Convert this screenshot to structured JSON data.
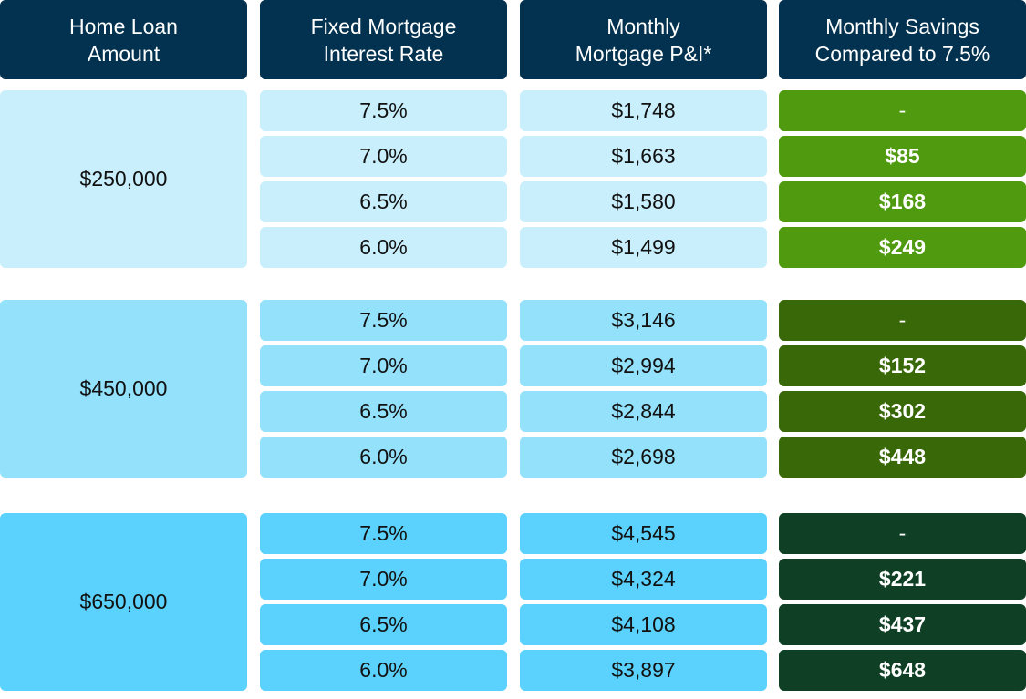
{
  "headers": [
    [
      "Home Loan",
      "Amount"
    ],
    [
      "Fixed Mortgage",
      "Interest Rate"
    ],
    [
      "Monthly",
      "Mortgage P&I*"
    ],
    [
      "Monthly Savings",
      "Compared to 7.5%"
    ]
  ],
  "groups": [
    {
      "amount": "$250,000",
      "rows": [
        {
          "rate": "7.5%",
          "payment": "$1,748",
          "savings": "-"
        },
        {
          "rate": "7.0%",
          "payment": "$1,663",
          "savings": "$85"
        },
        {
          "rate": "6.5%",
          "payment": "$1,580",
          "savings": "$168"
        },
        {
          "rate": "6.0%",
          "payment": "$1,499",
          "savings": "$249"
        }
      ]
    },
    {
      "amount": "$450,000",
      "rows": [
        {
          "rate": "7.5%",
          "payment": "$3,146",
          "savings": "-"
        },
        {
          "rate": "7.0%",
          "payment": "$2,994",
          "savings": "$152"
        },
        {
          "rate": "6.5%",
          "payment": "$2,844",
          "savings": "$302"
        },
        {
          "rate": "6.0%",
          "payment": "$2,698",
          "savings": "$448"
        }
      ]
    },
    {
      "amount": "$650,000",
      "rows": [
        {
          "rate": "7.5%",
          "payment": "$4,545",
          "savings": "-"
        },
        {
          "rate": "7.0%",
          "payment": "$4,324",
          "savings": "$221"
        },
        {
          "rate": "6.5%",
          "payment": "$4,108",
          "savings": "$437"
        },
        {
          "rate": "6.0%",
          "payment": "$3,897",
          "savings": "$648"
        }
      ]
    }
  ]
}
